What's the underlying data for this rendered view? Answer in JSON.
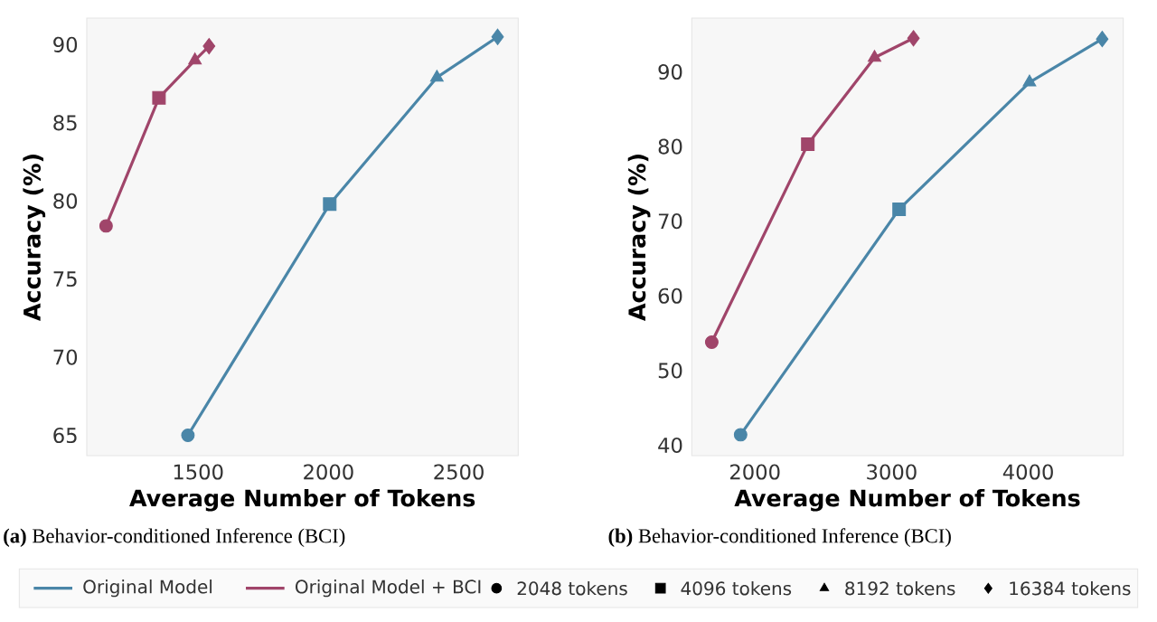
{
  "chart_data": [
    {
      "type": "line",
      "xlabel": "Average Number of Tokens",
      "ylabel": "Accuracy (%)",
      "xlim": [
        1073,
        2728
      ],
      "ylim": [
        63.7,
        91.7
      ],
      "xticks": [
        1500,
        2000,
        2500
      ],
      "yticks": [
        65,
        70,
        75,
        80,
        85,
        90
      ],
      "legend": "bottom",
      "line_style": "solid",
      "annotations": [
        "**(a)** Behavior-conditioned Inference (BCI)",
        "2048 tokens",
        "4096 tokens",
        "8192 tokens",
        "16384 tokens"
      ],
      "series": [
        {
          "name": "Original Model",
          "color": "#4a86a8",
          "marker": [
            "circle",
            "square",
            "triangle",
            "diamond"
          ],
          "x": [
            1461,
            2005,
            2416,
            2649
          ],
          "values": [
            65.0,
            79.8,
            87.9,
            90.5
          ]
        },
        {
          "name": "Original Model + BCI",
          "color": "#a0456a",
          "marker": [
            "circle",
            "square",
            "triangle",
            "diamond"
          ],
          "x": [
            1147,
            1350,
            1488,
            1542
          ],
          "values": [
            78.4,
            86.6,
            89.0,
            89.9
          ]
        }
      ]
    },
    {
      "type": "line",
      "xlabel": "Average Number of Tokens",
      "ylabel": "Accuracy (%)",
      "xlim": [
        1538,
        4695
      ],
      "ylim": [
        38.6,
        97.2
      ],
      "xticks": [
        2000,
        3000,
        4000
      ],
      "yticks": [
        40,
        50,
        60,
        70,
        80,
        90
      ],
      "line_style": "solid",
      "annotations": [
        "**(b)** Behavior-conditioned Inference (BCI)"
      ],
      "series": [
        {
          "color": "#4a86a8",
          "marker": [
            "circle",
            "square",
            "triangle",
            "diamond"
          ],
          "x": [
            1895,
            3055,
            4009,
            4541
          ],
          "values": [
            41.4,
            71.6,
            88.6,
            94.4
          ]
        },
        {
          "color": "#a0456a",
          "marker": [
            "circle",
            "square",
            "triangle",
            "diamond"
          ],
          "x": [
            1684,
            2387,
            2875,
            3160
          ],
          "values": [
            53.8,
            80.3,
            91.9,
            94.5
          ]
        }
      ]
    }
  ]
}
